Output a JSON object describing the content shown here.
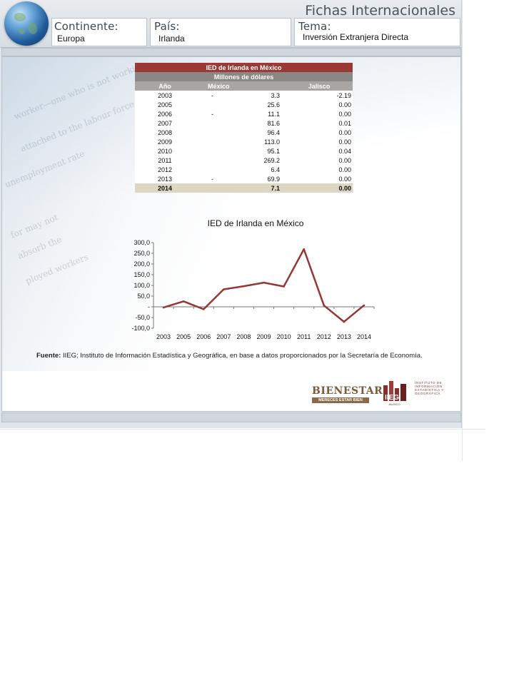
{
  "header": {
    "brand": "Fichas Internacionales",
    "continent": {
      "title": "Continente:",
      "value": "Europa"
    },
    "country": {
      "title": "País:",
      "value": "Irlanda"
    },
    "topic": {
      "title": "Tema:",
      "value": "Inversión Extranjera Directa"
    }
  },
  "table": {
    "title": "IED de Irlanda en México",
    "subtitle": "Millones de dólares",
    "columns": [
      "Año",
      "México",
      "Jalisco"
    ],
    "rows": [
      {
        "year": "2003",
        "sign": "-",
        "mexico": "3.3",
        "jalisco": "-2.19"
      },
      {
        "year": "2005",
        "sign": "",
        "mexico": "25.6",
        "jalisco": "0.00"
      },
      {
        "year": "2006",
        "sign": "-",
        "mexico": "11.1",
        "jalisco": "0.00"
      },
      {
        "year": "2007",
        "sign": "",
        "mexico": "81.6",
        "jalisco": "0.01"
      },
      {
        "year": "2008",
        "sign": "",
        "mexico": "96.4",
        "jalisco": "0.00"
      },
      {
        "year": "2009",
        "sign": "",
        "mexico": "113.0",
        "jalisco": "0.00"
      },
      {
        "year": "2010",
        "sign": "",
        "mexico": "95.1",
        "jalisco": "0.04"
      },
      {
        "year": "2011",
        "sign": "",
        "mexico": "269.2",
        "jalisco": "0.00"
      },
      {
        "year": "2012",
        "sign": "",
        "mexico": "6.4",
        "jalisco": "0.00"
      },
      {
        "year": "2013",
        "sign": "-",
        "mexico": "69.9",
        "jalisco": "0.00"
      },
      {
        "year": "2014",
        "sign": "",
        "mexico": "7.1",
        "jalisco": "0.00"
      }
    ]
  },
  "chart_data": {
    "type": "line",
    "title": "IED de Irlanda en México",
    "categories": [
      "2003",
      "2005",
      "2006",
      "2007",
      "2008",
      "2009",
      "2010",
      "2011",
      "2012",
      "2013",
      "2014"
    ],
    "series": [
      {
        "values": [
          -3.3,
          25.6,
          -11.1,
          81.6,
          96.4,
          113.0,
          95.1,
          269.2,
          6.4,
          -69.9,
          7.1
        ],
        "color": "#953735"
      }
    ],
    "yticks": [
      "300,0",
      "250,0",
      "200,0",
      "150,0",
      "100,0",
      "50,0",
      "-",
      "-50,0",
      "-100,0"
    ],
    "ylim": [
      -100,
      300
    ],
    "grid": false,
    "legend": "none"
  },
  "source": {
    "label": "Fuente:",
    "text": "IIEG; Instituto de Información Estadística y Geográfica, en base a datos proporcionados por la Secretaría de Economía."
  },
  "logos": {
    "bienestar": {
      "name": "BIENESTAR",
      "tagline": "MERECES ESTAR BIEN"
    },
    "iieg": {
      "mark": "IIEG",
      "sub": "JALISCO",
      "text": "INSTITUTO DE INFORMACIÓN ESTADÍSTICA Y GEOGRÁFICA"
    }
  }
}
